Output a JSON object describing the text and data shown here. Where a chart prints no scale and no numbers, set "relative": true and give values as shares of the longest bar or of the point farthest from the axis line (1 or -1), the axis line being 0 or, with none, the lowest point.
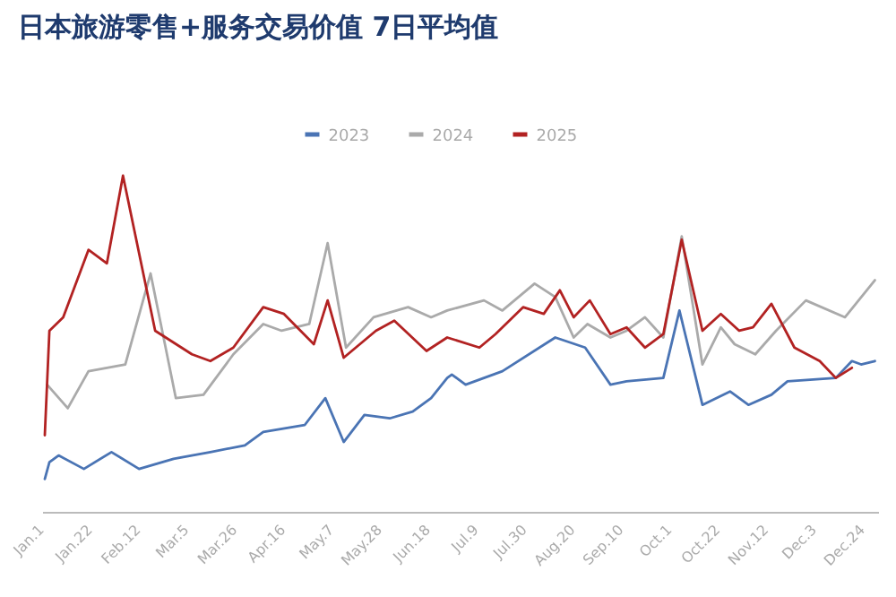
{
  "chart_data": {
    "type": "line",
    "title": "日本旅游零售+服务交易价值 7日平均值",
    "relative": true,
    "legend": "top",
    "marker": "none",
    "line_style": "solid",
    "grid": false,
    "xlim": [
      "--01-01",
      "--12-29"
    ],
    "xticks": [
      {
        "value": "--01-01",
        "label": "Jan.1"
      },
      {
        "value": "--01-22",
        "label": "Jan.22"
      },
      {
        "value": "--02-12",
        "label": "Feb.12"
      },
      {
        "value": "--03-05",
        "label": "Mar.5"
      },
      {
        "value": "--03-26",
        "label": "Mar.26"
      },
      {
        "value": "--04-16",
        "label": "Apr.16"
      },
      {
        "value": "--05-07",
        "label": "May.7"
      },
      {
        "value": "--05-28",
        "label": "May.28"
      },
      {
        "value": "--06-18",
        "label": "Jun.18"
      },
      {
        "value": "--07-09",
        "label": "Jul.9"
      },
      {
        "value": "--07-30",
        "label": "Jul.30"
      },
      {
        "value": "--08-20",
        "label": "Aug.20"
      },
      {
        "value": "--09-10",
        "label": "Sep.10"
      },
      {
        "value": "--10-01",
        "label": "Oct.1"
      },
      {
        "value": "--10-22",
        "label": "Oct.22"
      },
      {
        "value": "--11-12",
        "label": "Nov.12"
      },
      {
        "value": "--12-03",
        "label": "Dec.3"
      },
      {
        "value": "--12-24",
        "label": "Dec.24"
      }
    ],
    "series": [
      {
        "name": "2023",
        "color": "#4a74b4",
        "x": [
          "--01-01",
          "--01-03",
          "--01-07",
          "--01-18",
          "--01-30",
          "--02-11",
          "--02-26",
          "--03-14",
          "--03-29",
          "--04-06",
          "--04-24",
          "--05-03",
          "--05-11",
          "--05-20",
          "--05-31",
          "--06-10",
          "--06-18",
          "--06-25",
          "--06-27",
          "--07-03",
          "--07-19",
          "--08-11",
          "--08-24",
          "--09-04",
          "--09-11",
          "--09-27",
          "--10-04",
          "--10-14",
          "--10-26",
          "--11-03",
          "--11-13",
          "--11-20",
          "--12-11",
          "--12-18",
          "--12-22",
          "--12-28"
        ],
        "values": [
          0.1,
          0.15,
          0.17,
          0.13,
          0.18,
          0.13,
          0.16,
          0.18,
          0.2,
          0.24,
          0.26,
          0.34,
          0.21,
          0.29,
          0.28,
          0.3,
          0.34,
          0.4,
          0.41,
          0.38,
          0.42,
          0.52,
          0.49,
          0.38,
          0.39,
          0.4,
          0.6,
          0.32,
          0.36,
          0.32,
          0.35,
          0.39,
          0.4,
          0.45,
          0.44,
          0.45
        ]
      },
      {
        "name": "2024",
        "color": "#aaaaaa",
        "x": [
          "--01-02",
          "--01-11",
          "--01-20",
          "--02-05",
          "--02-16",
          "--02-27",
          "--03-11",
          "--03-24",
          "--04-06",
          "--04-14",
          "--04-26",
          "--05-04",
          "--05-12",
          "--05-24",
          "--06-08",
          "--06-18",
          "--06-25",
          "--07-11",
          "--07-19",
          "--08-02",
          "--08-11",
          "--08-19",
          "--08-25",
          "--09-04",
          "--09-11",
          "--09-19",
          "--09-27",
          "--10-05",
          "--10-14",
          "--10-22",
          "--10-28",
          "--11-06",
          "--11-15",
          "--11-28",
          "--12-15",
          "--12-28"
        ],
        "values": [
          0.38,
          0.31,
          0.42,
          0.44,
          0.71,
          0.34,
          0.35,
          0.47,
          0.56,
          0.54,
          0.56,
          0.8,
          0.49,
          0.58,
          0.61,
          0.58,
          0.6,
          0.63,
          0.6,
          0.68,
          0.64,
          0.52,
          0.56,
          0.52,
          0.54,
          0.58,
          0.52,
          0.82,
          0.44,
          0.55,
          0.5,
          0.47,
          0.54,
          0.63,
          0.58,
          0.69
        ]
      },
      {
        "name": "2025",
        "color": "#b22222",
        "x": [
          "--01-01",
          "--01-03",
          "--01-09",
          "--01-20",
          "--01-28",
          "--02-04",
          "--02-18",
          "--03-06",
          "--03-14",
          "--03-24",
          "--04-06",
          "--04-15",
          "--04-28",
          "--05-04",
          "--05-11",
          "--05-25",
          "--06-02",
          "--06-16",
          "--06-25",
          "--07-09",
          "--07-16",
          "--07-28",
          "--08-06",
          "--08-13",
          "--08-19",
          "--08-26",
          "--09-04",
          "--09-11",
          "--09-19",
          "--09-27",
          "--10-05",
          "--10-14",
          "--10-22",
          "--10-30",
          "--11-05",
          "--11-13",
          "--11-23",
          "--12-04",
          "--12-11",
          "--12-18"
        ],
        "values": [
          0.23,
          0.54,
          0.58,
          0.78,
          0.74,
          1.0,
          0.54,
          0.47,
          0.45,
          0.49,
          0.61,
          0.59,
          0.5,
          0.63,
          0.46,
          0.54,
          0.57,
          0.48,
          0.52,
          0.49,
          0.53,
          0.61,
          0.59,
          0.66,
          0.58,
          0.63,
          0.53,
          0.55,
          0.49,
          0.53,
          0.81,
          0.54,
          0.59,
          0.54,
          0.55,
          0.62,
          0.49,
          0.45,
          0.4,
          0.43
        ]
      }
    ]
  }
}
